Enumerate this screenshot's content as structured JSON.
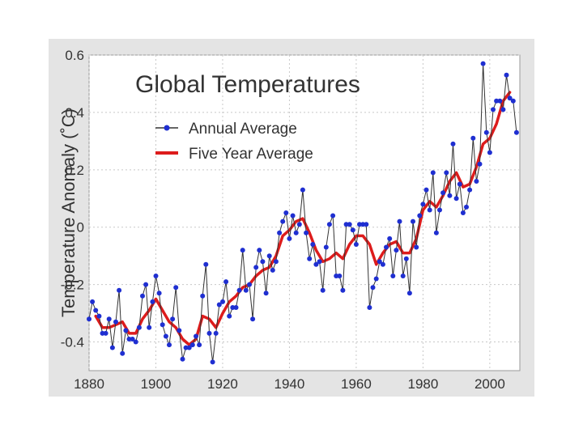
{
  "chart_data": {
    "type": "line",
    "title": "Global Temperatures",
    "xlabel": "",
    "ylabel": "Temperature Anomaly (˚C)",
    "xlim": [
      1880,
      2009
    ],
    "ylim": [
      -0.5,
      0.6
    ],
    "xticks": [
      1880,
      1900,
      1920,
      1940,
      1960,
      1980,
      2000
    ],
    "yticks": [
      -0.4,
      -0.2,
      0,
      0.2,
      0.4,
      0.6
    ],
    "ytick_labels": [
      "-0.4",
      "-0.2",
      "0",
      "0.2",
      "0.4",
      "0.6"
    ],
    "grid": true,
    "legend_position": "top-left",
    "colors": {
      "annual_line": "#333333",
      "annual_marker": "#1f2fd1",
      "five_year": "#dd1c1c",
      "panel_bg": "#e4e4e4",
      "plot_bg": "#ffffff",
      "grid": "#c8c8c8"
    },
    "series": [
      {
        "name": "Annual Average",
        "x": [
          1880,
          1881,
          1882,
          1883,
          1884,
          1885,
          1886,
          1887,
          1888,
          1889,
          1890,
          1891,
          1892,
          1893,
          1894,
          1895,
          1896,
          1897,
          1898,
          1899,
          1900,
          1901,
          1902,
          1903,
          1904,
          1905,
          1906,
          1907,
          1908,
          1909,
          1910,
          1911,
          1912,
          1913,
          1914,
          1915,
          1916,
          1917,
          1918,
          1919,
          1920,
          1921,
          1922,
          1923,
          1924,
          1925,
          1926,
          1927,
          1928,
          1929,
          1930,
          1931,
          1932,
          1933,
          1934,
          1935,
          1936,
          1937,
          1938,
          1939,
          1940,
          1941,
          1942,
          1943,
          1944,
          1945,
          1946,
          1947,
          1948,
          1949,
          1950,
          1951,
          1952,
          1953,
          1954,
          1955,
          1956,
          1957,
          1958,
          1959,
          1960,
          1961,
          1962,
          1963,
          1964,
          1965,
          1966,
          1967,
          1968,
          1969,
          1970,
          1971,
          1972,
          1973,
          1974,
          1975,
          1976,
          1977,
          1978,
          1979,
          1980,
          1981,
          1982,
          1983,
          1984,
          1985,
          1986,
          1987,
          1988,
          1989,
          1990,
          1991,
          1992,
          1993,
          1994,
          1995,
          1996,
          1997,
          1998,
          1999,
          2000,
          2001,
          2002,
          2003,
          2004,
          2005,
          2006,
          2007,
          2008
        ],
        "values": [
          -0.32,
          -0.26,
          -0.29,
          -0.31,
          -0.37,
          -0.37,
          -0.32,
          -0.42,
          -0.33,
          -0.22,
          -0.44,
          -0.36,
          -0.39,
          -0.39,
          -0.4,
          -0.35,
          -0.24,
          -0.2,
          -0.35,
          -0.26,
          -0.17,
          -0.23,
          -0.34,
          -0.38,
          -0.41,
          -0.32,
          -0.21,
          -0.36,
          -0.46,
          -0.42,
          -0.42,
          -0.41,
          -0.38,
          -0.41,
          -0.24,
          -0.13,
          -0.37,
          -0.47,
          -0.37,
          -0.27,
          -0.26,
          -0.19,
          -0.31,
          -0.28,
          -0.28,
          -0.22,
          -0.08,
          -0.22,
          -0.2,
          -0.32,
          -0.14,
          -0.08,
          -0.12,
          -0.23,
          -0.1,
          -0.15,
          -0.12,
          -0.02,
          0.02,
          0.05,
          -0.04,
          0.04,
          -0.02,
          0.01,
          0.13,
          -0.02,
          -0.11,
          -0.06,
          -0.13,
          -0.12,
          -0.22,
          -0.07,
          0.01,
          0.04,
          -0.17,
          -0.17,
          -0.22,
          0.01,
          0.01,
          -0.01,
          -0.06,
          0.01,
          0.01,
          0.01,
          -0.28,
          -0.21,
          -0.18,
          -0.12,
          -0.13,
          -0.07,
          -0.04,
          -0.17,
          -0.08,
          0.02,
          -0.17,
          -0.11,
          -0.23,
          0.02,
          -0.07,
          0.04,
          0.08,
          0.13,
          0.06,
          0.19,
          -0.02,
          0.06,
          0.12,
          0.19,
          0.11,
          0.29,
          0.1,
          0.15,
          0.05,
          0.07,
          0.13,
          0.31,
          0.16,
          0.22,
          0.57,
          0.33,
          0.26,
          0.41,
          0.44,
          0.44,
          0.41,
          0.53,
          0.45,
          0.44,
          0.33
        ],
        "marker": "circle"
      },
      {
        "name": "Five Year Average",
        "x": [
          1882,
          1884,
          1886,
          1888,
          1890,
          1892,
          1894,
          1896,
          1898,
          1900,
          1902,
          1904,
          1906,
          1908,
          1910,
          1912,
          1914,
          1916,
          1918,
          1920,
          1922,
          1924,
          1926,
          1928,
          1930,
          1932,
          1934,
          1936,
          1938,
          1940,
          1942,
          1944,
          1946,
          1948,
          1950,
          1952,
          1954,
          1956,
          1958,
          1960,
          1962,
          1964,
          1966,
          1968,
          1970,
          1972,
          1974,
          1976,
          1978,
          1980,
          1982,
          1984,
          1986,
          1988,
          1990,
          1992,
          1994,
          1996,
          1998,
          2000,
          2002,
          2004,
          2006
        ],
        "values": [
          -0.31,
          -0.35,
          -0.35,
          -0.34,
          -0.33,
          -0.37,
          -0.37,
          -0.32,
          -0.29,
          -0.25,
          -0.29,
          -0.33,
          -0.35,
          -0.39,
          -0.41,
          -0.39,
          -0.31,
          -0.32,
          -0.35,
          -0.3,
          -0.26,
          -0.24,
          -0.21,
          -0.2,
          -0.17,
          -0.15,
          -0.14,
          -0.1,
          -0.03,
          -0.01,
          0.02,
          0.03,
          -0.02,
          -0.08,
          -0.12,
          -0.11,
          -0.09,
          -0.11,
          -0.06,
          -0.03,
          -0.03,
          -0.06,
          -0.13,
          -0.09,
          -0.06,
          -0.05,
          -0.09,
          -0.09,
          -0.04,
          0.06,
          0.09,
          0.07,
          0.11,
          0.16,
          0.19,
          0.14,
          0.15,
          0.21,
          0.29,
          0.31,
          0.36,
          0.44,
          0.47
        ],
        "marker": "none"
      }
    ]
  }
}
